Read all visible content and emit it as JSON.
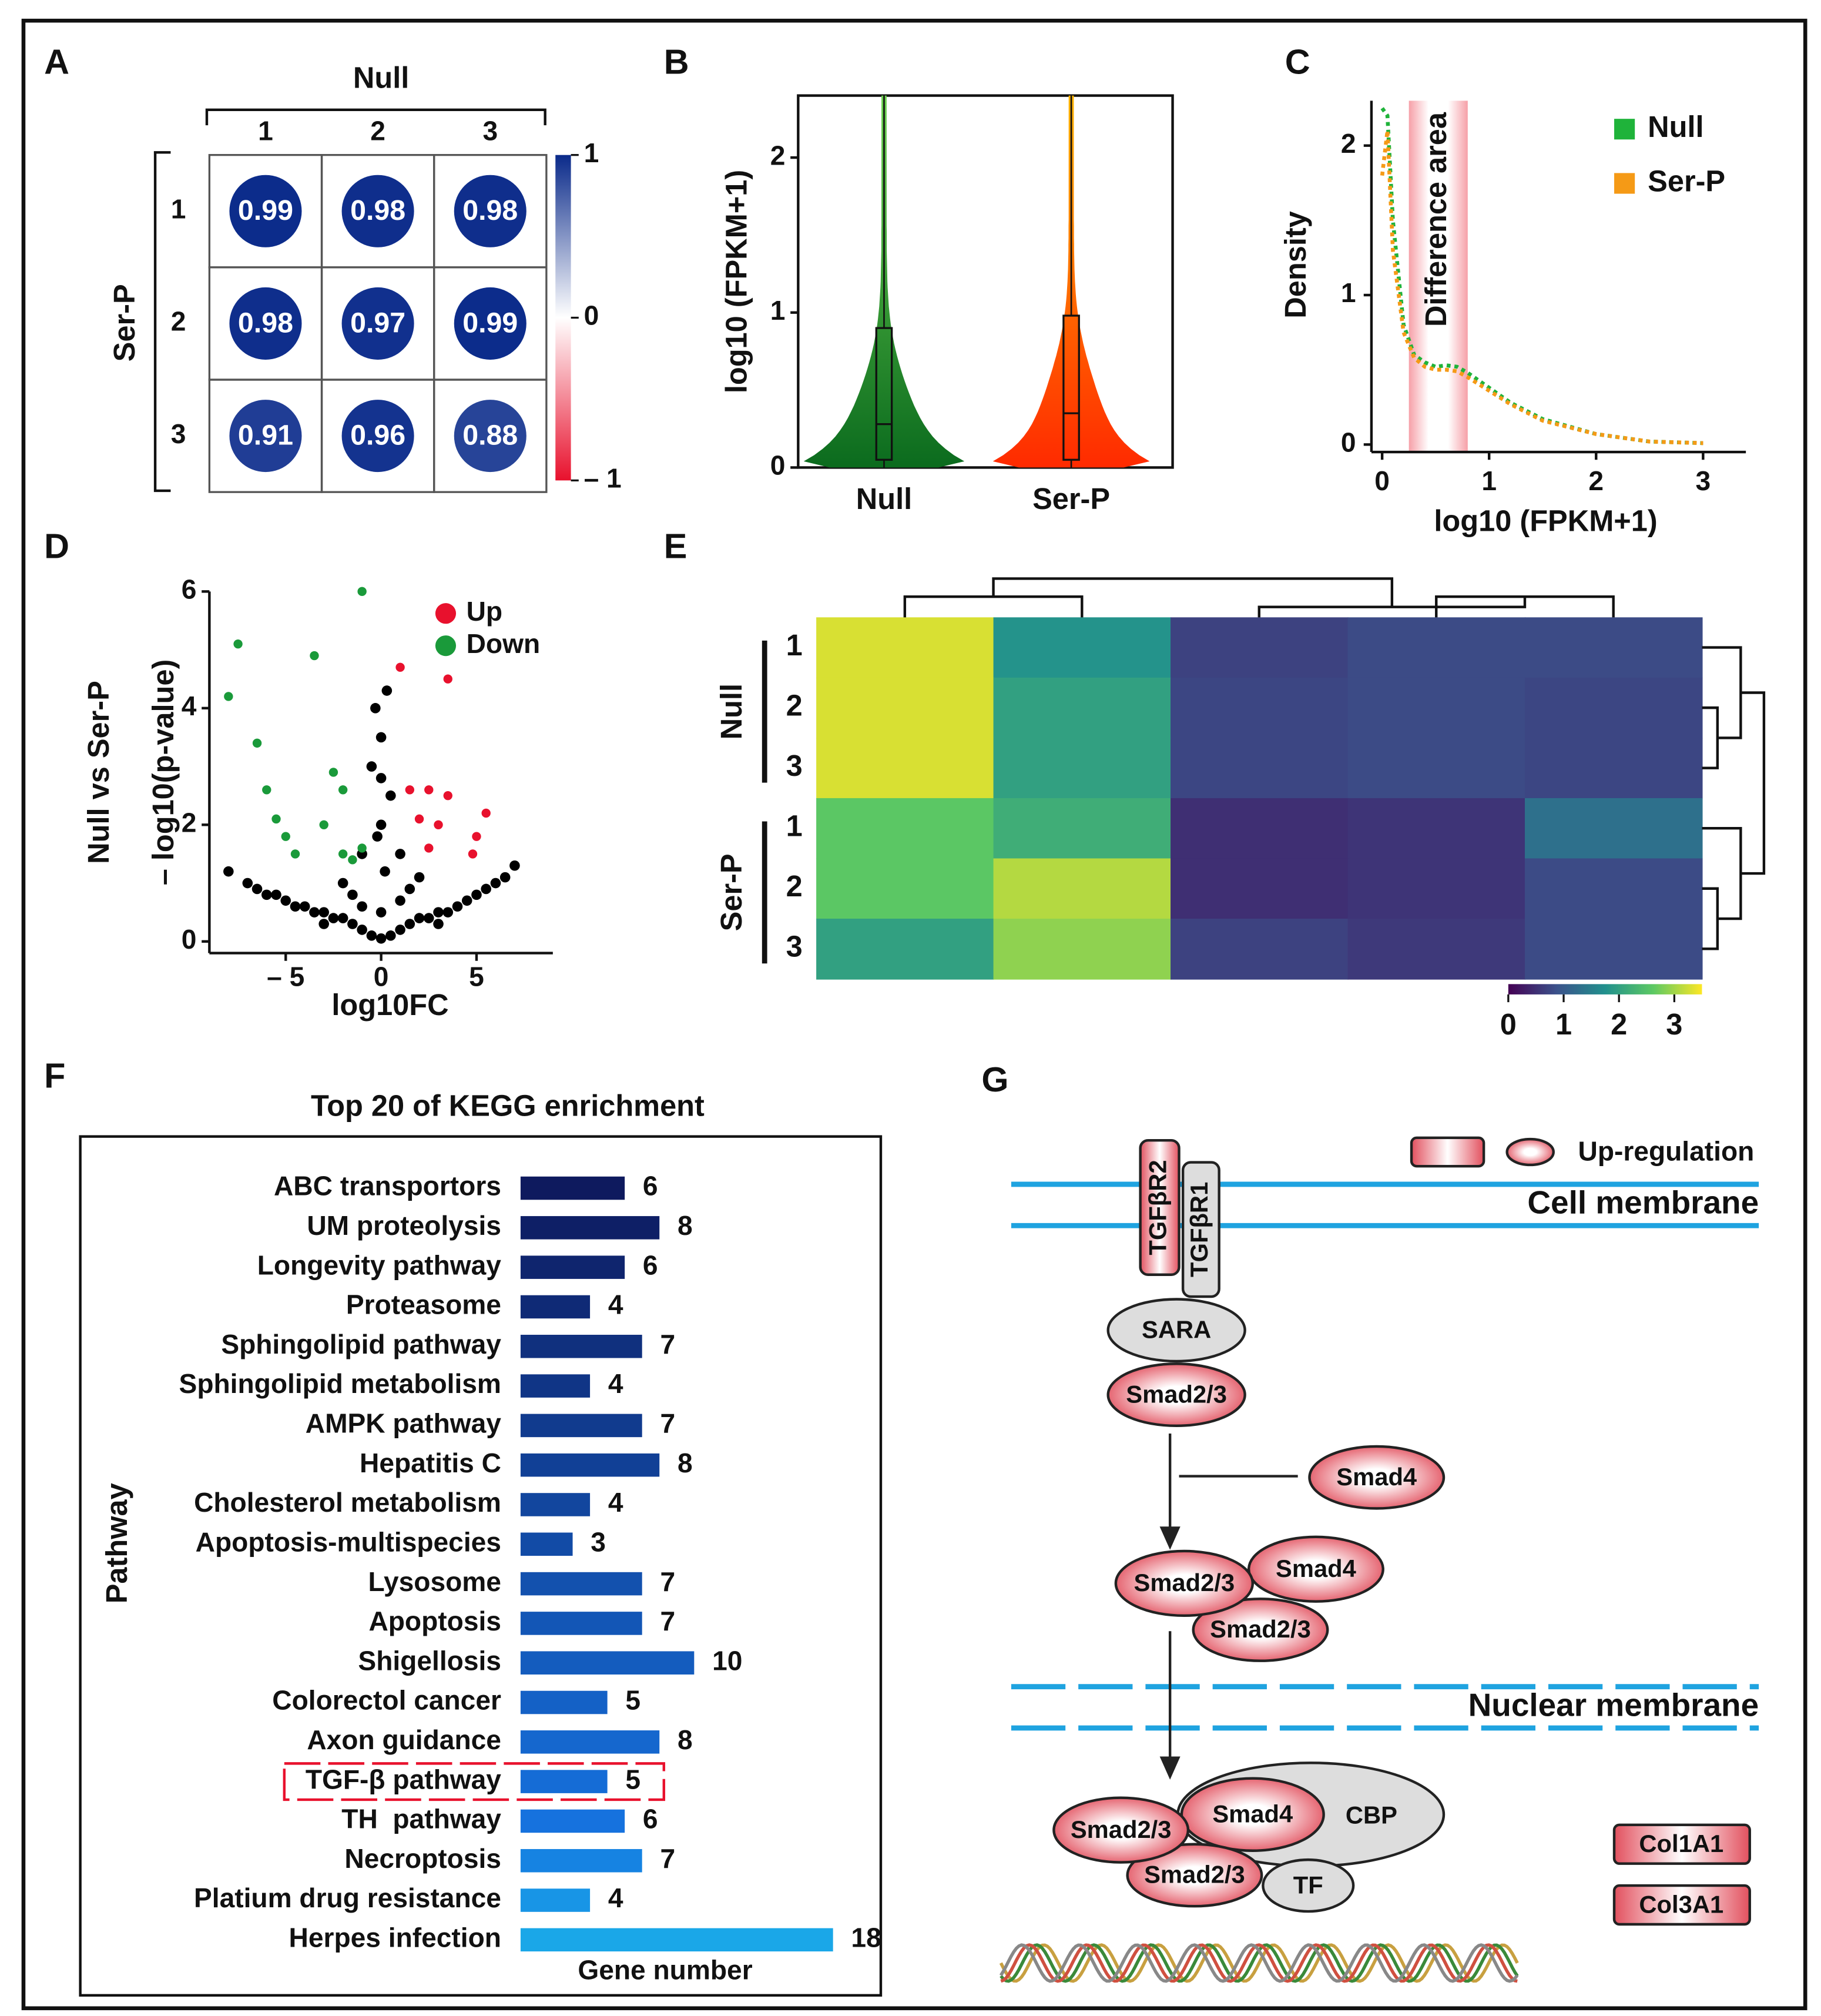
{
  "chart_data": [
    {
      "panel": "A",
      "type": "correlation",
      "xlabel": "Null",
      "ylabel": "Ser-P",
      "xcategories": [
        "1",
        "2",
        "3"
      ],
      "ycategories": [
        "1",
        "2",
        "3"
      ],
      "values": [
        [
          0.99,
          0.98,
          0.98
        ],
        [
          0.98,
          0.97,
          0.99
        ],
        [
          0.91,
          0.96,
          0.88
        ]
      ],
      "colorscale": [
        "#e8112d",
        "#ffffff",
        "#0a2a8a"
      ],
      "zlim": [
        -1,
        1
      ],
      "zticks": [
        1,
        0,
        {
          "value": -1,
          "label": "– 1"
        }
      ]
    },
    {
      "panel": "B",
      "type": "violin",
      "ylabel": "log10 (FPKM+1)",
      "categories": [
        "Null",
        "Ser-P"
      ],
      "colors": [
        [
          "#0b6b1e",
          "#6cd050"
        ],
        [
          "#ff2a00",
          "#ffb400"
        ]
      ],
      "min": [
        0,
        0
      ],
      "q1": [
        0.05,
        0.05
      ],
      "median": [
        0.28,
        0.35
      ],
      "q3": [
        0.9,
        0.98
      ],
      "max": [
        2.4,
        2.4
      ],
      "ylim": [
        0,
        2.4
      ],
      "yticks": [
        0,
        1,
        2
      ]
    },
    {
      "panel": "C",
      "type": "line",
      "xlabel": "log10 (FPKM+1)",
      "ylabel": "Density",
      "x": [
        0,
        0.05,
        0.1,
        0.2,
        0.3,
        0.4,
        0.5,
        0.6,
        0.7,
        0.8,
        1,
        1.2,
        1.5,
        2,
        2.5,
        3
      ],
      "series": [
        {
          "name": "Null",
          "color": "#1fb33a",
          "values": [
            2.25,
            2.2,
            1.5,
            0.8,
            0.6,
            0.55,
            0.52,
            0.53,
            0.52,
            0.48,
            0.38,
            0.28,
            0.17,
            0.07,
            0.02,
            0.01
          ]
        },
        {
          "name": "Ser-P",
          "color": "#f59a16",
          "values": [
            1.8,
            2.1,
            1.3,
            0.75,
            0.58,
            0.52,
            0.5,
            0.5,
            0.49,
            0.45,
            0.36,
            0.27,
            0.16,
            0.07,
            0.02,
            0.01
          ]
        }
      ],
      "annotation": {
        "text": "Difference area",
        "x": [
          0.25,
          0.8
        ]
      },
      "xlim": [
        -0.1,
        3.4
      ],
      "xticks": [
        0,
        1,
        2,
        3
      ],
      "ylim": [
        -0.05,
        2.3
      ],
      "yticks": [
        0,
        1,
        2
      ],
      "legend": "upper right"
    },
    {
      "panel": "D",
      "type": "scatter",
      "xlabel": "log10FC",
      "ylabel": "– log10(p-value)",
      "ylabel2": "Null vs Ser-P",
      "series": [
        {
          "color": "#000000",
          "x": [
            -8,
            -7,
            -6.5,
            -6,
            -5.5,
            -5,
            -4.5,
            -4,
            -3.5,
            -3,
            -2.5,
            -2,
            -1.5,
            -1,
            -0.5,
            0,
            0.5,
            1,
            1.5,
            2,
            2.5,
            3,
            3.5,
            4,
            4.5,
            5,
            5.5,
            6,
            6.5,
            7,
            -2,
            -1,
            0,
            1,
            2,
            -0.5,
            0.5,
            -1.5,
            1.5,
            0,
            -3,
            3,
            -0.3,
            0.3,
            0,
            -1,
            1,
            0.2,
            -0.2,
            0
          ],
          "values": [
            1.2,
            1.0,
            0.9,
            0.8,
            0.8,
            0.7,
            0.6,
            0.6,
            0.5,
            0.5,
            0.4,
            0.4,
            0.3,
            0.2,
            0.1,
            0.05,
            0.1,
            0.2,
            0.3,
            0.4,
            0.4,
            0.5,
            0.5,
            0.6,
            0.7,
            0.8,
            0.9,
            1.0,
            1.1,
            1.3,
            1.0,
            1.5,
            2.0,
            1.5,
            1.1,
            3.0,
            2.5,
            0.8,
            0.9,
            3.5,
            0.3,
            0.3,
            4.0,
            4.3,
            2.8,
            0.6,
            0.7,
            1.2,
            1.8,
            0.5
          ]
        },
        {
          "name": "Up",
          "color": "#e8112d",
          "x": [
            1,
            3.5,
            1.5,
            2.5,
            3.5,
            2,
            3,
            5.5,
            5,
            4.8,
            2.5
          ],
          "values": [
            4.7,
            4.5,
            2.6,
            2.6,
            2.5,
            2.1,
            2.0,
            2.2,
            1.8,
            1.5,
            1.6
          ]
        },
        {
          "name": "Down",
          "color": "#1a9a3a",
          "x": [
            -1,
            -7.5,
            -3.5,
            -8,
            -6.5,
            -6,
            -2.5,
            -2,
            -5.5,
            -5,
            -4.5,
            -3,
            -2,
            -1.5,
            -1
          ],
          "values": [
            6,
            5.1,
            4.9,
            4.2,
            3.4,
            2.6,
            2.9,
            2.6,
            2.1,
            1.8,
            1.5,
            2.0,
            1.5,
            1.4,
            1.6
          ]
        }
      ],
      "xlim": [
        -9,
        9
      ],
      "xticks": [
        {
          "value": -5,
          "label": "– 5"
        },
        0,
        5
      ],
      "ylim": [
        -0.2,
        6
      ],
      "yticks": [
        0,
        2,
        4,
        6
      ],
      "legend": "upper right"
    },
    {
      "panel": "E",
      "type": "heatmap",
      "groups": [
        "Null",
        "Ser-P"
      ],
      "rows": [
        "1",
        "2",
        "3",
        "1",
        "2",
        "3"
      ],
      "values": [
        [
          3.3,
          1.8,
          0.7,
          0.8,
          0.8
        ],
        [
          3.3,
          2.0,
          0.75,
          0.8,
          0.75
        ],
        [
          3.3,
          2.0,
          0.75,
          0.8,
          0.75
        ],
        [
          2.6,
          2.2,
          0.5,
          0.55,
          1.3
        ],
        [
          2.6,
          3.1,
          0.5,
          0.55,
          0.8
        ],
        [
          2.0,
          2.9,
          0.7,
          0.6,
          0.8
        ]
      ],
      "colorscale": [
        "#440154",
        "#3b528b",
        "#21908d",
        "#5dc963",
        "#fde725"
      ],
      "zlim": [
        0,
        3.5
      ],
      "zticks": [
        0,
        1,
        2,
        3
      ]
    },
    {
      "panel": "F",
      "type": "bar",
      "title": "Top 20 of KEGG enrichment",
      "xlabel": "Gene number",
      "ylabel": "Pathway",
      "categories": [
        "ABC transportors",
        "UM proteolysis",
        "Longevity pathway",
        "Proteasome",
        "Sphingolipid pathway",
        "Sphingolipid metabolism",
        "AMPK pathway",
        "Hepatitis C",
        "Cholesterol metabolism",
        "Apoptosis-multispecies",
        "Lysosome",
        "Apoptosis",
        "Shigellosis",
        "Colorectol cancer",
        "Axon guidance",
        "TGF-β pathway",
        "TH  pathway",
        "Necroptosis",
        "Platium drug resistance",
        "Herpes infection"
      ],
      "values": [
        6,
        8,
        6,
        4,
        7,
        4,
        7,
        8,
        4,
        3,
        7,
        7,
        10,
        5,
        8,
        5,
        6,
        7,
        4,
        18
      ],
      "colors": [
        "#0e1a5e",
        "#0e1f66",
        "#0f256e",
        "#0f2a76",
        "#10307e",
        "#103586",
        "#113b8e",
        "#114096",
        "#12469e",
        "#124ba6",
        "#1351ae",
        "#1356b6",
        "#145cbe",
        "#1461c6",
        "#1567ce",
        "#156cd6",
        "#1672de",
        "#1683e2",
        "#1895e6",
        "#1aa7e8"
      ],
      "xlim": [
        0,
        18
      ]
    }
  ],
  "diagram": {
    "panel": "G",
    "legend": "Up-regulation",
    "membranes": [
      "Cell membrane",
      "Nuclear membrane"
    ],
    "nodes": [
      {
        "label": "TGFβR2"
      },
      {
        "label": "TGFβR1"
      },
      {
        "label": "SARA"
      },
      {
        "label": "Smad2/3"
      },
      {
        "label": "Smad4"
      },
      {
        "label": "Smad2/3"
      },
      {
        "label": "Smad4"
      },
      {
        "label": "Smad2/3"
      },
      {
        "label": "CBP"
      },
      {
        "label": "Smad4"
      },
      {
        "label": "Smad2/3"
      },
      {
        "label": "Smad2/3"
      },
      {
        "label": "TF"
      },
      {
        "label": "Col1A1"
      },
      {
        "label": "Col3A1"
      }
    ]
  }
}
